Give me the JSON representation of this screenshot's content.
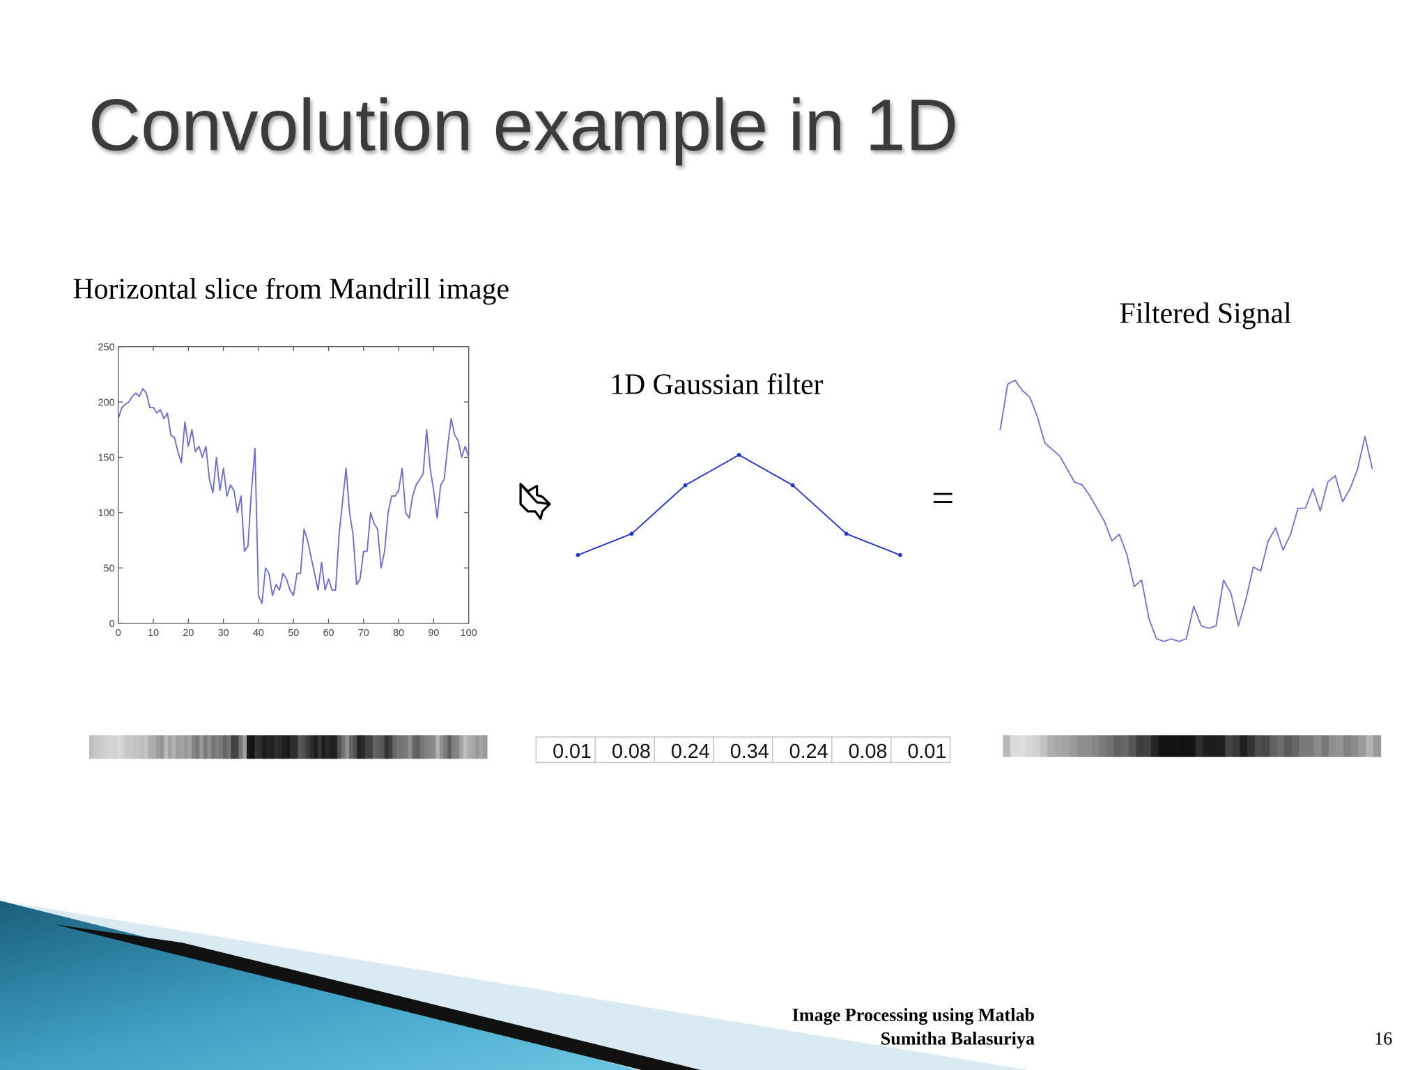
{
  "title": "Convolution example in 1D",
  "slice_label": "Horizontal slice from Mandrill image",
  "filter_label": "1D Gaussian filter",
  "filtered_label": "Filtered Signal",
  "equals": "=",
  "footer": {
    "line1": "Image Processing using Matlab",
    "line2": "Sumitha Balasuriya",
    "page": "16"
  },
  "chart_data": [
    {
      "type": "line",
      "color": "#6a6ad8",
      "xlim": [
        0,
        100
      ],
      "ylim": [
        0,
        250
      ],
      "xticks": [
        0,
        10,
        20,
        30,
        40,
        50,
        60,
        70,
        80,
        90,
        100
      ],
      "yticks": [
        0,
        50,
        100,
        150,
        200,
        250
      ],
      "x": [
        0,
        1,
        2,
        3,
        4,
        5,
        6,
        7,
        8,
        9,
        10,
        11,
        12,
        13,
        14,
        15,
        16,
        17,
        18,
        19,
        20,
        21,
        22,
        23,
        24,
        25,
        26,
        27,
        28,
        29,
        30,
        31,
        32,
        33,
        34,
        35,
        36,
        37,
        38,
        39,
        40,
        41,
        42,
        43,
        44,
        45,
        46,
        47,
        48,
        49,
        50,
        51,
        52,
        53,
        54,
        55,
        56,
        57,
        58,
        59,
        60,
        61,
        62,
        63,
        64,
        65,
        66,
        67,
        68,
        69,
        70,
        71,
        72,
        73,
        74,
        75,
        76,
        77,
        78,
        79,
        80,
        81,
        82,
        83,
        84,
        85,
        86,
        87,
        88,
        89,
        90,
        91,
        92,
        93,
        94,
        95,
        96,
        97,
        98,
        99,
        100
      ],
      "values": [
        185,
        195,
        198,
        200,
        205,
        208,
        205,
        212,
        208,
        195,
        195,
        190,
        193,
        185,
        190,
        170,
        168,
        155,
        145,
        182,
        160,
        175,
        155,
        160,
        150,
        160,
        130,
        118,
        150,
        120,
        140,
        115,
        125,
        120,
        100,
        115,
        65,
        70,
        120,
        158,
        25,
        18,
        50,
        45,
        25,
        35,
        30,
        45,
        40,
        30,
        25,
        45,
        45,
        85,
        75,
        60,
        45,
        30,
        55,
        30,
        40,
        30,
        30,
        80,
        110,
        140,
        100,
        80,
        35,
        40,
        65,
        65,
        100,
        90,
        85,
        50,
        65,
        100,
        115,
        115,
        120,
        140,
        100,
        95,
        115,
        125,
        130,
        135,
        175,
        140,
        120,
        95,
        125,
        130,
        160,
        185,
        170,
        165,
        150,
        160,
        150
      ]
    },
    {
      "type": "line",
      "color": "#1f2fe0",
      "markers": true,
      "values": [
        0.01,
        0.08,
        0.24,
        0.34,
        0.24,
        0.08,
        0.01
      ]
    },
    {
      "type": "line",
      "color": "#7070d8",
      "x": [
        0,
        2,
        4,
        6,
        8,
        10,
        12,
        14,
        16,
        18,
        20,
        22,
        24,
        26,
        28,
        30,
        32,
        34,
        36,
        38,
        40,
        42,
        44,
        46,
        48,
        50,
        52,
        54,
        56,
        58,
        60,
        62,
        64,
        66,
        68,
        70,
        72,
        74,
        76,
        78,
        80,
        82,
        84,
        86,
        88,
        90,
        92,
        94,
        96,
        98,
        100
      ],
      "values": [
        180,
        215,
        218,
        210,
        205,
        190,
        170,
        165,
        160,
        150,
        140,
        138,
        130,
        120,
        110,
        95,
        100,
        85,
        60,
        65,
        35,
        20,
        18,
        20,
        18,
        20,
        45,
        30,
        28,
        30,
        65,
        55,
        30,
        50,
        75,
        72,
        95,
        105,
        88,
        100,
        120,
        120,
        135,
        118,
        140,
        145,
        125,
        135,
        150,
        175,
        150
      ]
    }
  ]
}
